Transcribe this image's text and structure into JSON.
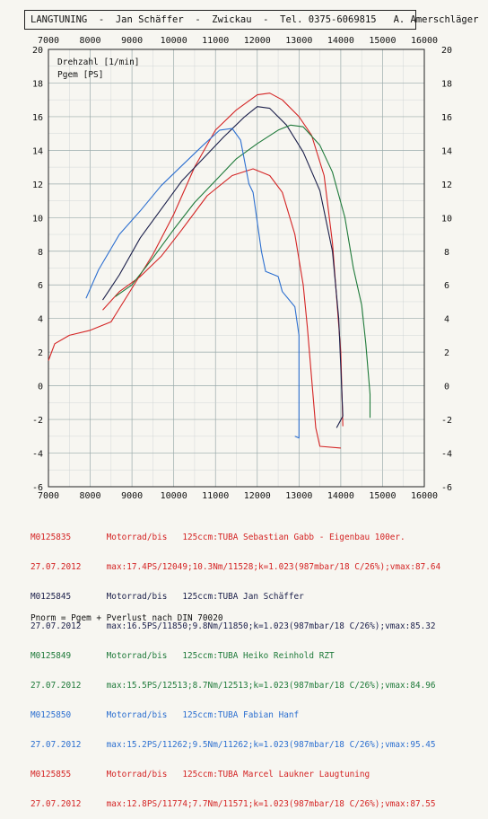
{
  "header": {
    "title": "LANGTUNING  -  Jan Schäffer  -  Zwickau  -  Tel. 0375-6069815   A. Amerschläger"
  },
  "chart_data": {
    "type": "line",
    "title": "",
    "ylabel_lines": [
      "Drehzahl [1/min]",
      "Pgem [PS]"
    ],
    "x_ticks_top": [
      "7000",
      "8000",
      "9000",
      "10000",
      "11000",
      "12000",
      "13000",
      "14000",
      "15000",
      "16000"
    ],
    "x_ticks_bottom": [
      "7000",
      "8000",
      "9000",
      "10000",
      "11000",
      "12000",
      "13000",
      "14000",
      "15000",
      "16000"
    ],
    "y_ticks_left": [
      "20",
      "18",
      "16",
      "14",
      "12",
      "10",
      "8",
      "6",
      "4",
      "2",
      "0",
      "-2",
      "-4",
      "-6"
    ],
    "y_ticks_right": [
      "20",
      "18",
      "16",
      "14",
      "12",
      "10",
      "8",
      "6",
      "4",
      "2",
      "0",
      "-2",
      "-4",
      "-6"
    ],
    "xlim": [
      7000,
      16000
    ],
    "ylim": [
      -6,
      20
    ],
    "grid": true,
    "series": [
      {
        "color": "#d42424",
        "points": [
          [
            7000,
            1.5
          ],
          [
            7150,
            2.5
          ],
          [
            7500,
            3.0
          ],
          [
            8000,
            3.3
          ],
          [
            8500,
            3.8
          ],
          [
            9000,
            5.8
          ],
          [
            9500,
            7.8
          ],
          [
            10000,
            10.2
          ],
          [
            10500,
            13.0
          ],
          [
            11000,
            15.2
          ],
          [
            11500,
            16.4
          ],
          [
            12000,
            17.3
          ],
          [
            12300,
            17.4
          ],
          [
            12600,
            17.0
          ],
          [
            13000,
            16.0
          ],
          [
            13300,
            14.9
          ],
          [
            13600,
            12.5
          ],
          [
            13800,
            8.5
          ],
          [
            14000,
            2.0
          ],
          [
            14050,
            -2.4
          ]
        ]
      },
      {
        "color": "#d42424",
        "points": [
          [
            8300,
            4.5
          ],
          [
            8700,
            5.6
          ],
          [
            9200,
            6.5
          ],
          [
            9700,
            7.7
          ],
          [
            10200,
            9.3
          ],
          [
            10800,
            11.3
          ],
          [
            11400,
            12.5
          ],
          [
            11900,
            12.9
          ],
          [
            12300,
            12.5
          ],
          [
            12600,
            11.5
          ],
          [
            12900,
            9.0
          ],
          [
            13100,
            6.0
          ],
          [
            13200,
            3.5
          ],
          [
            13300,
            0.5
          ],
          [
            13400,
            -2.5
          ],
          [
            13500,
            -3.6
          ],
          [
            14000,
            -3.7
          ]
        ]
      },
      {
        "color": "#1b1f4a",
        "points": [
          [
            8300,
            5.1
          ],
          [
            8700,
            6.6
          ],
          [
            9200,
            8.8
          ],
          [
            9700,
            10.5
          ],
          [
            10200,
            12.2
          ],
          [
            10700,
            13.5
          ],
          [
            11200,
            14.8
          ],
          [
            11700,
            16.0
          ],
          [
            12000,
            16.6
          ],
          [
            12300,
            16.5
          ],
          [
            12700,
            15.5
          ],
          [
            13100,
            13.9
          ],
          [
            13500,
            11.6
          ],
          [
            13800,
            8.0
          ],
          [
            13950,
            4.0
          ],
          [
            14050,
            -1.8
          ],
          [
            13900,
            -2.5
          ]
        ]
      },
      {
        "color": "#1f7a3a",
        "points": [
          [
            8600,
            5.3
          ],
          [
            9000,
            6.0
          ],
          [
            9500,
            7.6
          ],
          [
            10000,
            9.3
          ],
          [
            10500,
            10.9
          ],
          [
            11000,
            12.2
          ],
          [
            11500,
            13.5
          ],
          [
            12000,
            14.4
          ],
          [
            12500,
            15.2
          ],
          [
            12800,
            15.5
          ],
          [
            13100,
            15.4
          ],
          [
            13500,
            14.3
          ],
          [
            13800,
            12.7
          ],
          [
            14100,
            10.0
          ],
          [
            14300,
            7.0
          ],
          [
            14500,
            4.8
          ],
          [
            14600,
            2.5
          ],
          [
            14700,
            -0.5
          ],
          [
            14700,
            -1.9
          ]
        ]
      },
      {
        "color": "#2c6fd0",
        "points": [
          [
            7900,
            5.2
          ],
          [
            8200,
            6.9
          ],
          [
            8700,
            9.0
          ],
          [
            9200,
            10.4
          ],
          [
            9700,
            11.9
          ],
          [
            10200,
            13.1
          ],
          [
            10700,
            14.3
          ],
          [
            11100,
            15.2
          ],
          [
            11400,
            15.3
          ],
          [
            11600,
            14.6
          ],
          [
            11800,
            12.0
          ],
          [
            11900,
            11.5
          ],
          [
            12100,
            8.0
          ],
          [
            12200,
            6.8
          ],
          [
            12500,
            6.5
          ],
          [
            12600,
            5.6
          ],
          [
            12900,
            4.7
          ],
          [
            13000,
            3.0
          ],
          [
            13000,
            -3.1
          ],
          [
            12900,
            -3.0
          ]
        ]
      }
    ],
    "legend": [
      {
        "color": "#d42424",
        "text": "M0125835       Motorrad/bis   125ccm:TUBA Sebastian Gabb - Eigenbau 100er."
      },
      {
        "color": "#d42424",
        "text": "27.07.2012     max:17.4PS/12049;10.3Nm/11528;k=1.023(987mbar/18 C/26%);vmax:87.64"
      },
      {
        "color": "#1b1f4a",
        "text": "M0125845       Motorrad/bis   125ccm:TUBA Jan Schäffer"
      },
      {
        "color": "#1b1f4a",
        "text": "27.07.2012     max:16.5PS/11850;9.8Nm/11850;k=1.023(987mbar/18 C/26%);vmax:85.32"
      },
      {
        "color": "#1f7a3a",
        "text": "M0125849       Motorrad/bis   125ccm:TUBA Heiko Reinhold RZT"
      },
      {
        "color": "#1f7a3a",
        "text": "27.07.2012     max:15.5PS/12513;8.7Nm/12513;k=1.023(987mbar/18 C/26%);vmax:84.96"
      },
      {
        "color": "#2c6fd0",
        "text": "M0125850       Motorrad/bis   125ccm:TUBA Fabian Hanf"
      },
      {
        "color": "#2c6fd0",
        "text": "27.07.2012     max:15.2PS/11262;9.5Nm/11262;k=1.023(987mbar/18 C/26%);vmax:95.45"
      },
      {
        "color": "#d42424",
        "text": "M0125855       Motorrad/bis   125ccm:TUBA Marcel Laukner Laugtuning"
      },
      {
        "color": "#d42424",
        "text": "27.07.2012     max:12.8PS/11774;7.7Nm/11571;k=1.023(987mbar/18 C/26%);vmax:87.55"
      }
    ],
    "footnote": "Pnorm = Pgem + Pverlust nach DIN 70020"
  }
}
